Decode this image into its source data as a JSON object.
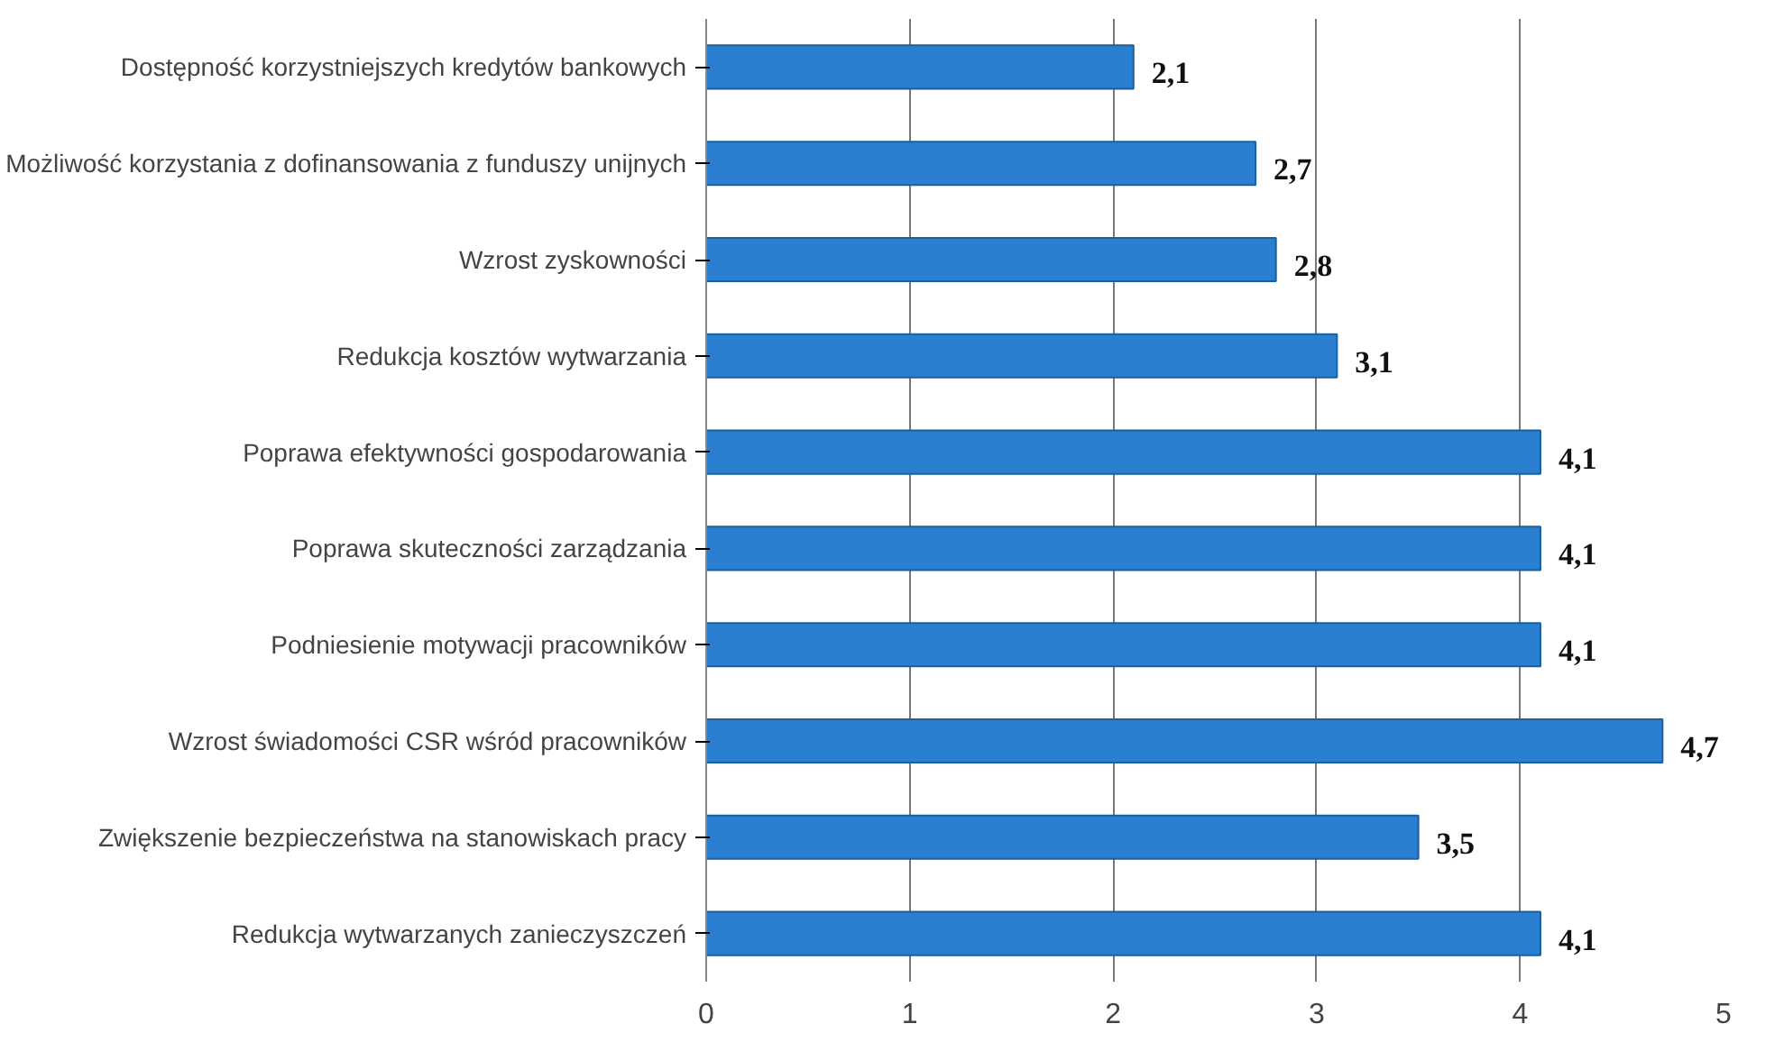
{
  "chart_data": {
    "type": "bar",
    "orientation": "horizontal",
    "categories": [
      "Dostępność korzystniejszych kredytów bankowych",
      "Możliwość korzystania z dofinansowania z funduszy unijnych",
      "Wzrost zyskowności",
      "Redukcja kosztów wytwarzania",
      "Poprawa efektywności gospodarowania",
      "Poprawa skuteczności zarządzania",
      "Podniesienie motywacji pracowników",
      "Wzrost świadomości CSR wśród pracowników",
      "Zwiększenie bezpieczeństwa na stanowiskach pracy",
      "Redukcja wytwarzanych zanieczyszczeń"
    ],
    "values": [
      2.1,
      2.7,
      2.8,
      3.1,
      4.1,
      4.1,
      4.1,
      4.7,
      3.5,
      4.1
    ],
    "value_labels": [
      "2,1",
      "2,7",
      "2,8",
      "3,1",
      "4,1",
      "4,1",
      "4,1",
      "4,7",
      "3,5",
      "4,1"
    ],
    "color": "#2b7fd0",
    "xlim": [
      0,
      5
    ],
    "xticks": [
      0,
      1,
      2,
      3,
      4,
      5
    ],
    "grid": "x"
  }
}
